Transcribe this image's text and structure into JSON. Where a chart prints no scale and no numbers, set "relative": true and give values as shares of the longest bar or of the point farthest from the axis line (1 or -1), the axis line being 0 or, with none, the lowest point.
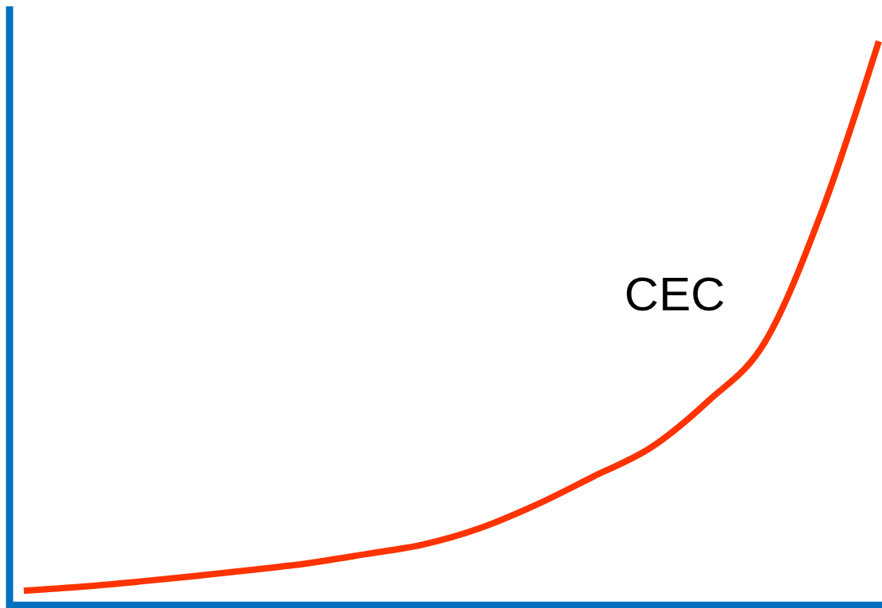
{
  "chart_data": {
    "type": "line",
    "relative": true,
    "categories": [
      null,
      null,
      null,
      null,
      null,
      null,
      null,
      null,
      null,
      null,
      null,
      null,
      null,
      null,
      null,
      null
    ],
    "series": [
      {
        "name": "CEC",
        "color": "#ff3300",
        "values": [
          0.025,
          0.032,
          0.041,
          0.051,
          0.062,
          0.074,
          0.09,
          0.107,
          0.136,
          0.178,
          0.228,
          0.279,
          0.361,
          0.466,
          0.698,
          1
        ]
      }
    ],
    "legend": false,
    "grid": false,
    "marker": "none",
    "line_style": "solid"
  }
}
